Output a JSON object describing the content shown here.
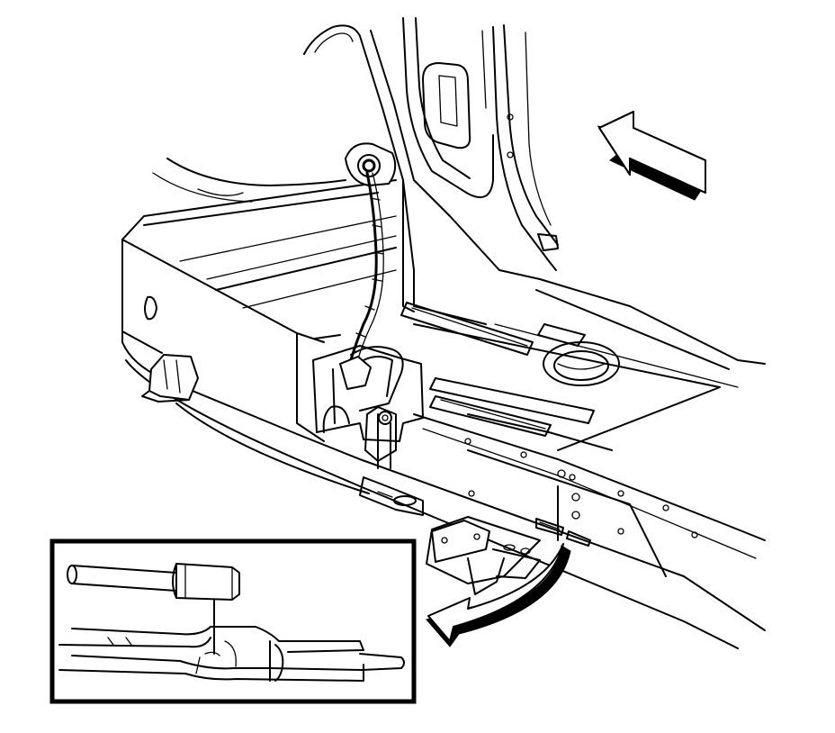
{
  "figure": {
    "kind": "service-manual-line-illustration",
    "colors": {
      "ink": "#000000",
      "paper": "#ffffff"
    },
    "icons": {
      "view_direction": "view-direction-arrow-icon",
      "callout": "detail-callout-arrow-icon"
    }
  }
}
